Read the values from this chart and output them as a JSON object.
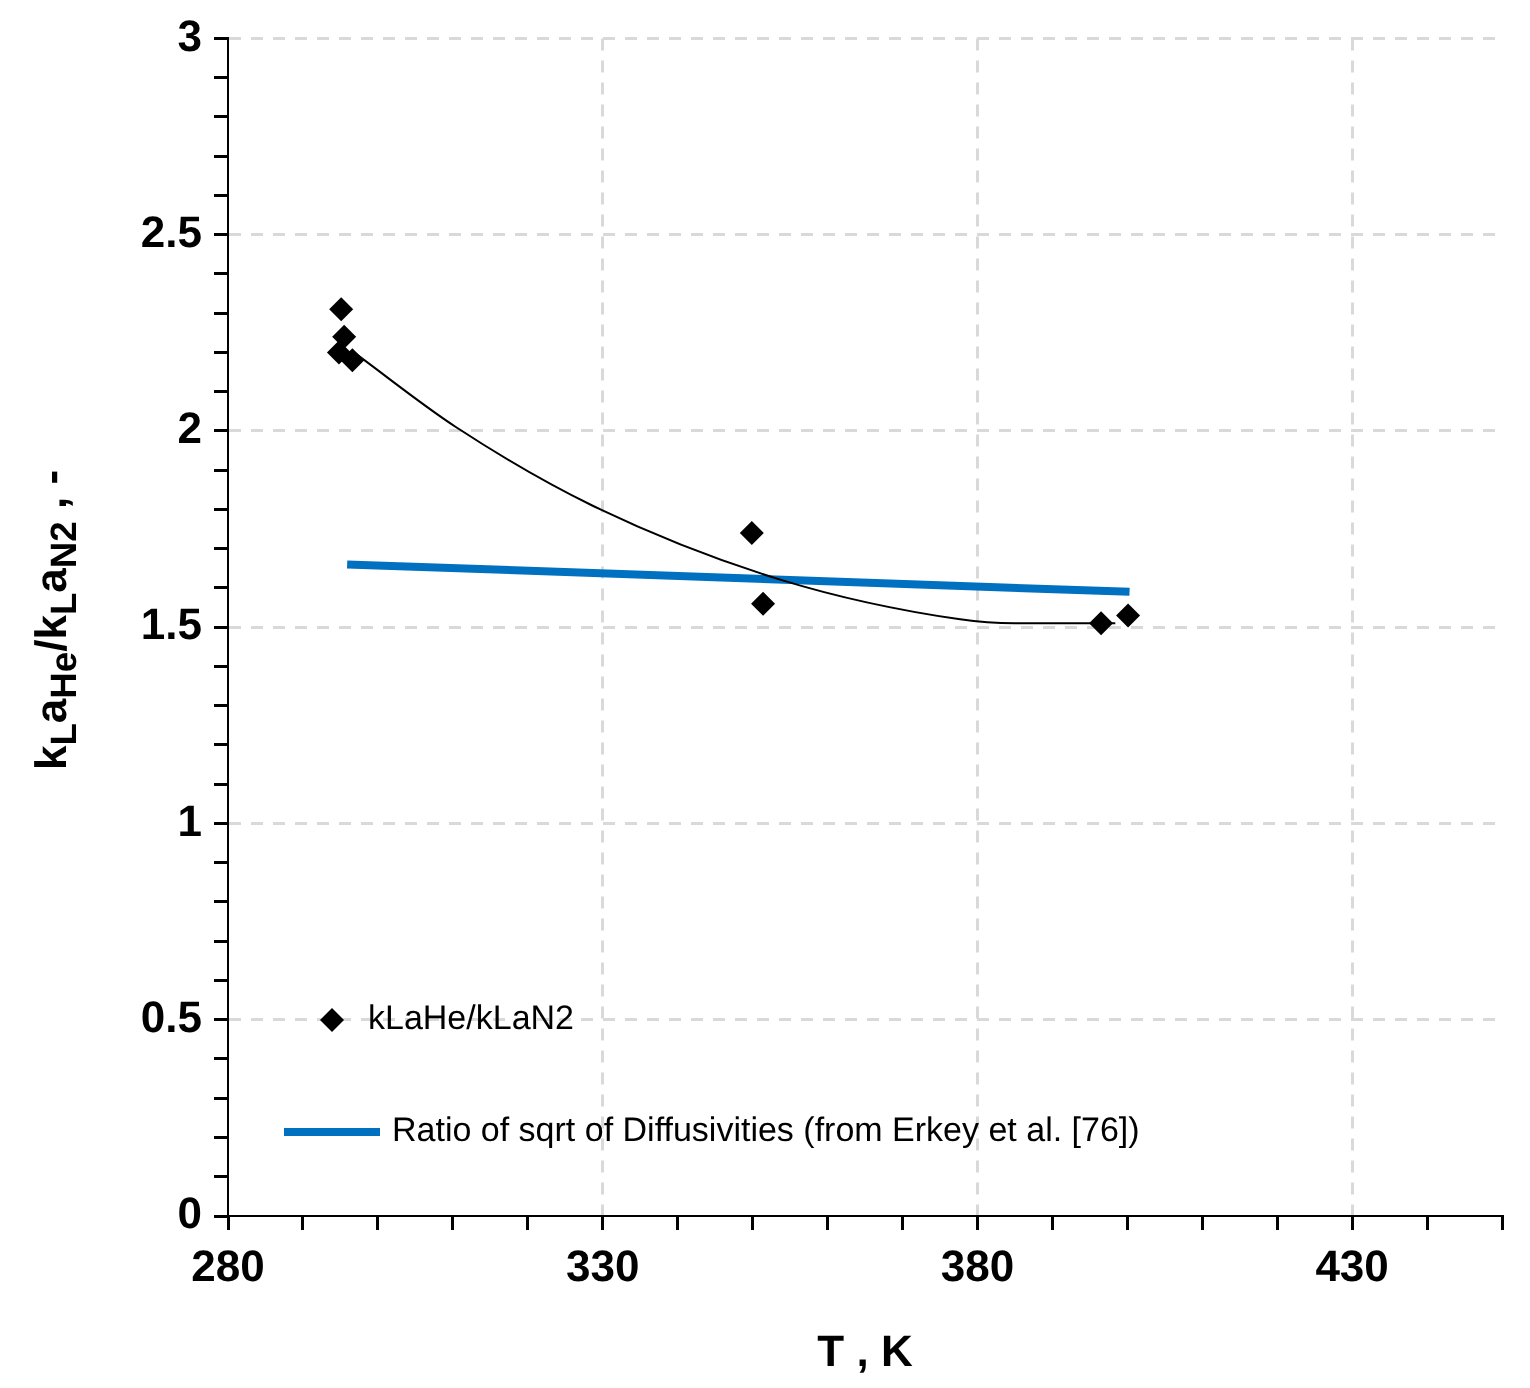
{
  "chart_data": {
    "type": "scatter",
    "xlabel": "T , K",
    "ylabel": "k$_{L}$a$_{He}$/k$_{L}$a$_{N2}$ , -",
    "series": [
      {
        "name": "kLaHe/kLaN2",
        "type": "scatter",
        "color": "#000000",
        "marker": "diamond",
        "x": [
          295.1,
          295.5,
          294.8,
          296.6,
          349.9,
          351.4,
          396.5,
          400.1
        ],
        "values": [
          2.31,
          2.24,
          2.2,
          2.18,
          1.74,
          1.56,
          1.51,
          1.53
        ]
      },
      {
        "type": "line",
        "color": "#000000",
        "x": [
          296.8,
          310.4,
          328.6,
          353.9,
          377.7,
          385,
          398.4
        ],
        "values": [
          2.2,
          2.01,
          1.81,
          1.62,
          1.52,
          1.51,
          1.51
        ]
      },
      {
        "name": "Ratio of sqrt of Diffusivities (from Erkey et al. [76])",
        "type": "line",
        "color": "#0070c0",
        "x": [
          295.9,
          400.3
        ],
        "values": [
          1.66,
          1.59
        ]
      }
    ],
    "xlim": [
      280,
      450
    ],
    "xticks": [
      280,
      {
        "value": 290,
        "label": null
      },
      {
        "value": 300,
        "label": null
      },
      {
        "value": 310,
        "label": null
      },
      {
        "value": 320,
        "label": null
      },
      330,
      {
        "value": 340,
        "label": null
      },
      {
        "value": 350,
        "label": null
      },
      {
        "value": 360,
        "label": null
      },
      {
        "value": 370,
        "label": null
      },
      380,
      {
        "value": 390,
        "label": null
      },
      {
        "value": 400,
        "label": null
      },
      {
        "value": 410,
        "label": null
      },
      {
        "value": 420,
        "label": null
      },
      430,
      {
        "value": 440,
        "label": null
      },
      {
        "value": 450,
        "label": null
      }
    ],
    "ylim": [
      0,
      3
    ],
    "yticks": [
      0,
      {
        "value": 0.1,
        "label": null
      },
      {
        "value": 0.2,
        "label": null
      },
      {
        "value": 0.3,
        "label": null
      },
      {
        "value": 0.4,
        "label": null
      },
      0.5,
      {
        "value": 0.6,
        "label": null
      },
      {
        "value": 0.7,
        "label": null
      },
      {
        "value": 0.8,
        "label": null
      },
      {
        "value": 0.9,
        "label": null
      },
      1,
      {
        "value": 1.1,
        "label": null
      },
      {
        "value": 1.2,
        "label": null
      },
      {
        "value": 1.3,
        "label": null
      },
      {
        "value": 1.4,
        "label": null
      },
      1.5,
      {
        "value": 1.6,
        "label": null
      },
      {
        "value": 1.7,
        "label": null
      },
      {
        "value": 1.8,
        "label": null
      },
      {
        "value": 1.9,
        "label": null
      },
      2,
      {
        "value": 2.1,
        "label": null
      },
      {
        "value": 2.2,
        "label": null
      },
      {
        "value": 2.3,
        "label": null
      },
      {
        "value": 2.4,
        "label": null
      },
      2.5,
      {
        "value": 2.6,
        "label": null
      },
      {
        "value": 2.7,
        "label": null
      },
      {
        "value": 2.8,
        "label": null
      },
      {
        "value": 2.9,
        "label": null
      },
      3
    ],
    "grid": true,
    "legend": "bottom left"
  }
}
